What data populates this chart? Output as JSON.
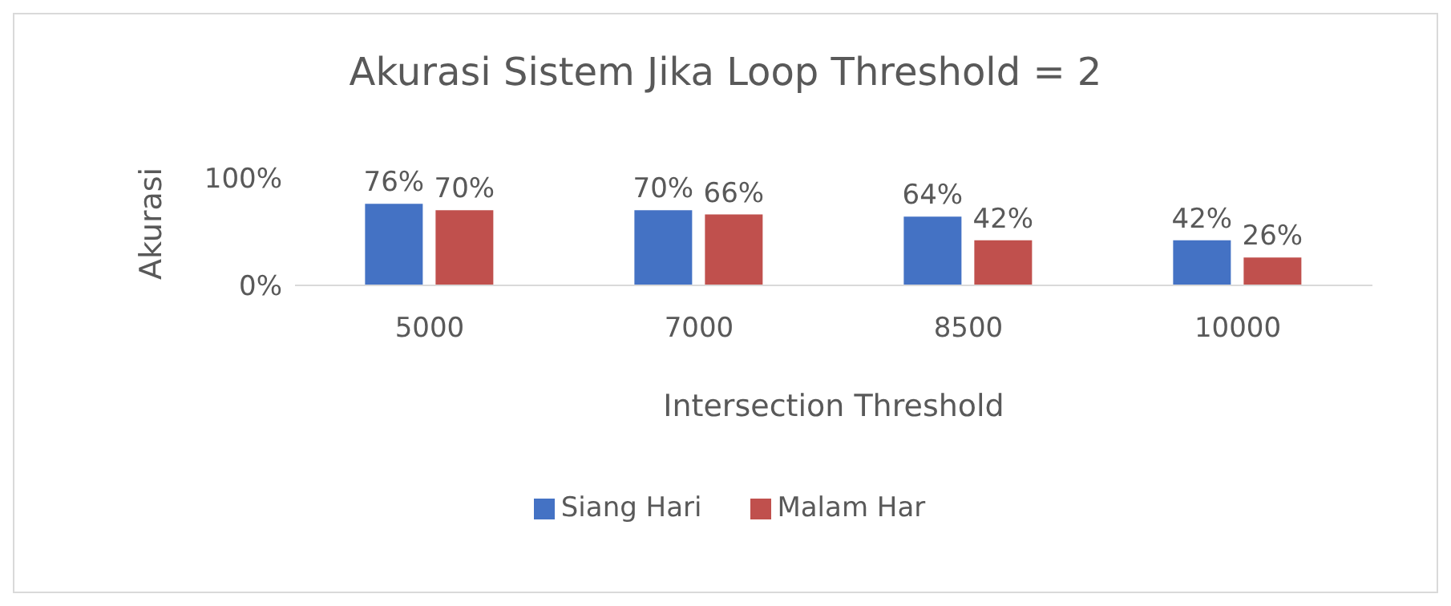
{
  "chart_data": {
    "type": "bar",
    "title": "Akurasi Sistem Jika Loop Threshold = 2",
    "xlabel": "Intersection Threshold",
    "ylabel": "Akurasi",
    "categories": [
      "5000",
      "7000",
      "8500",
      "10000"
    ],
    "series": [
      {
        "name": "Siang Hari",
        "color": "#4472c4",
        "values": [
          76,
          70,
          64,
          42
        ],
        "value_labels": [
          "76%",
          "70%",
          "64%",
          "42%"
        ]
      },
      {
        "name": "Malam Har",
        "color": "#c0504d",
        "values": [
          70,
          66,
          42,
          26
        ],
        "value_labels": [
          "70%",
          "66%",
          "42%",
          "26%"
        ]
      }
    ],
    "ylim": [
      0,
      100
    ],
    "yticks": [
      {
        "value": 0,
        "label": "0%"
      },
      {
        "value": 100,
        "label": "100%"
      }
    ],
    "grid": false,
    "legend": "bottom"
  }
}
